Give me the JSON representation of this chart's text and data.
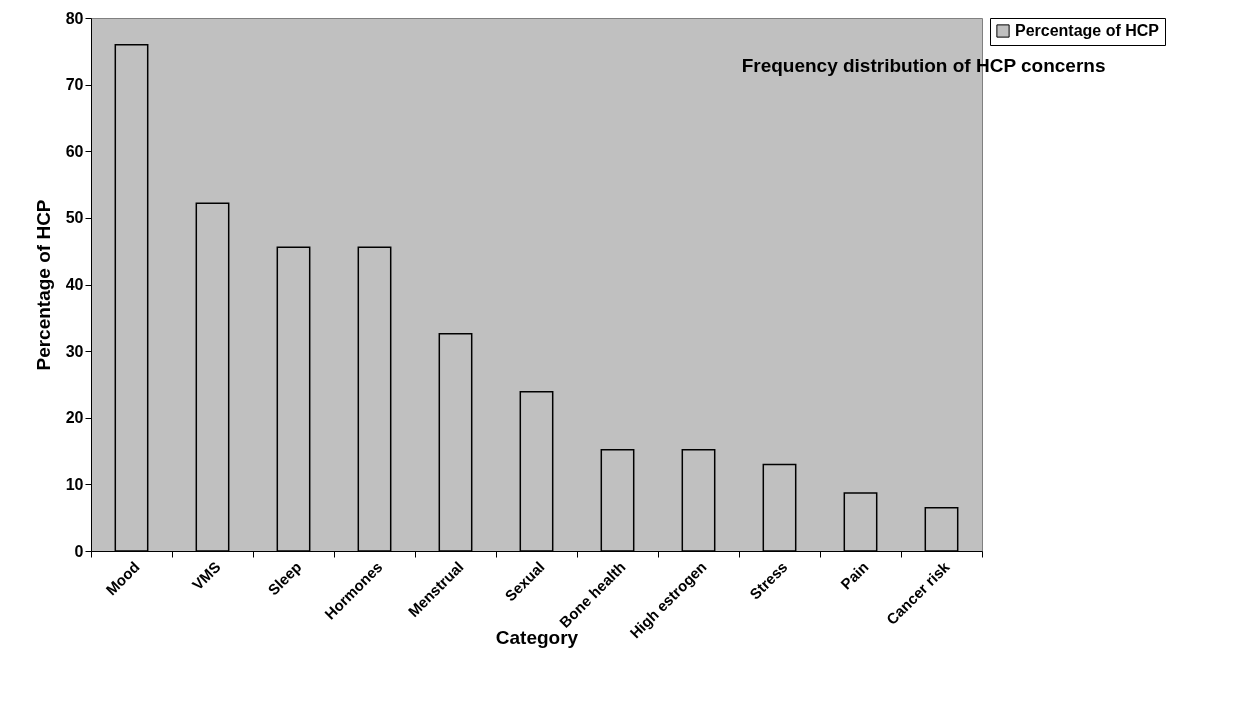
{
  "chart_data": {
    "type": "bar",
    "title": "Frequency distribution of HCP concerns",
    "xlabel": "Category",
    "ylabel": "Percentage of HCP",
    "categories": [
      "Mood",
      "VMS",
      "Sleep",
      "Hormones",
      "Menstrual",
      "Sexual",
      "Bone health",
      "High estrogen",
      "Stress",
      "Pain",
      "Cancer risk"
    ],
    "series": [
      {
        "name": "Percentage of HCP",
        "color": "#c0c0c0",
        "values": [
          76,
          52.2,
          45.6,
          45.6,
          32.6,
          23.9,
          15.2,
          15.2,
          13,
          8.7,
          6.5
        ]
      }
    ],
    "ylim": [
      0,
      80
    ],
    "yticks": [
      0,
      10,
      20,
      30,
      40,
      50,
      60,
      70,
      80
    ],
    "grid": false,
    "legend": "right"
  }
}
